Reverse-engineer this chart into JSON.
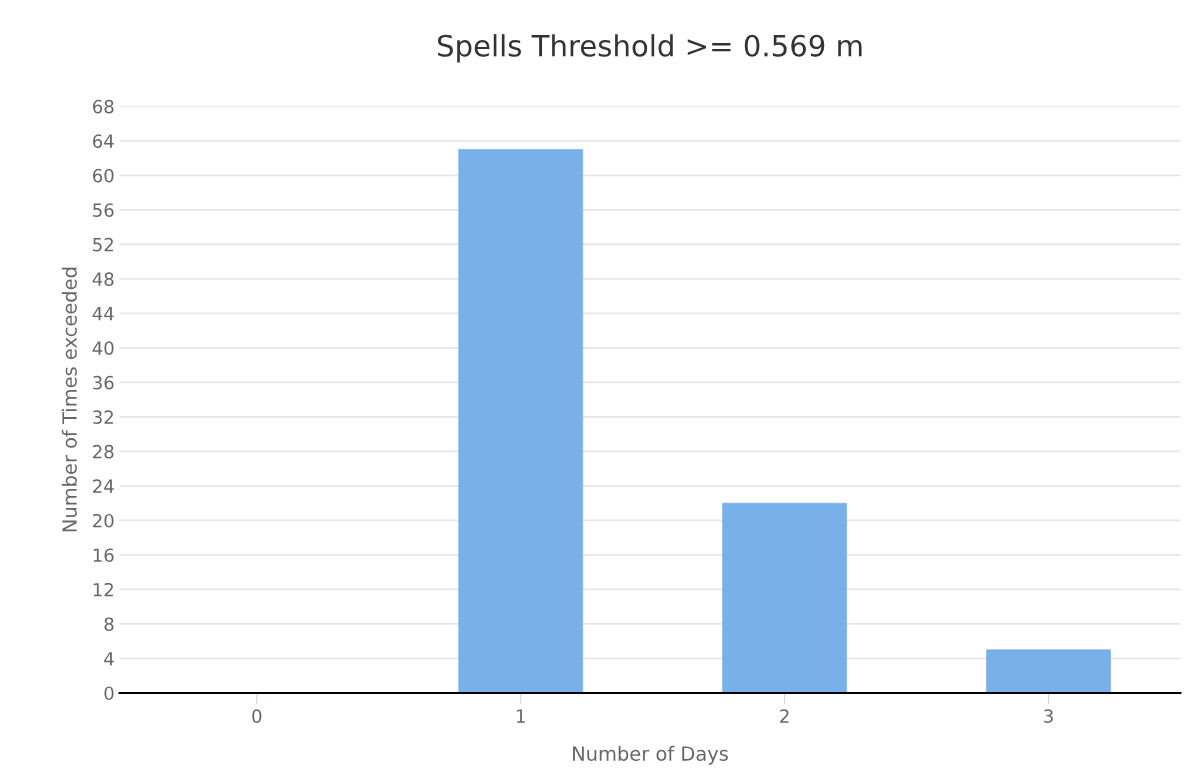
{
  "chart_data": {
    "type": "bar",
    "title": "Spells Threshold >= 0.569 m",
    "xlabel": "Number of Days",
    "ylabel": "Number of Times exceeded",
    "categories": [
      "0",
      "1",
      "2",
      "3"
    ],
    "values": [
      0,
      63,
      22,
      5
    ],
    "color": "#78b1e9",
    "ylim": [
      0,
      68
    ],
    "yticks": [
      0,
      4,
      8,
      12,
      16,
      20,
      24,
      28,
      32,
      36,
      40,
      44,
      48,
      52,
      56,
      60,
      64,
      68
    ],
    "grid": "y",
    "legend": false
  }
}
